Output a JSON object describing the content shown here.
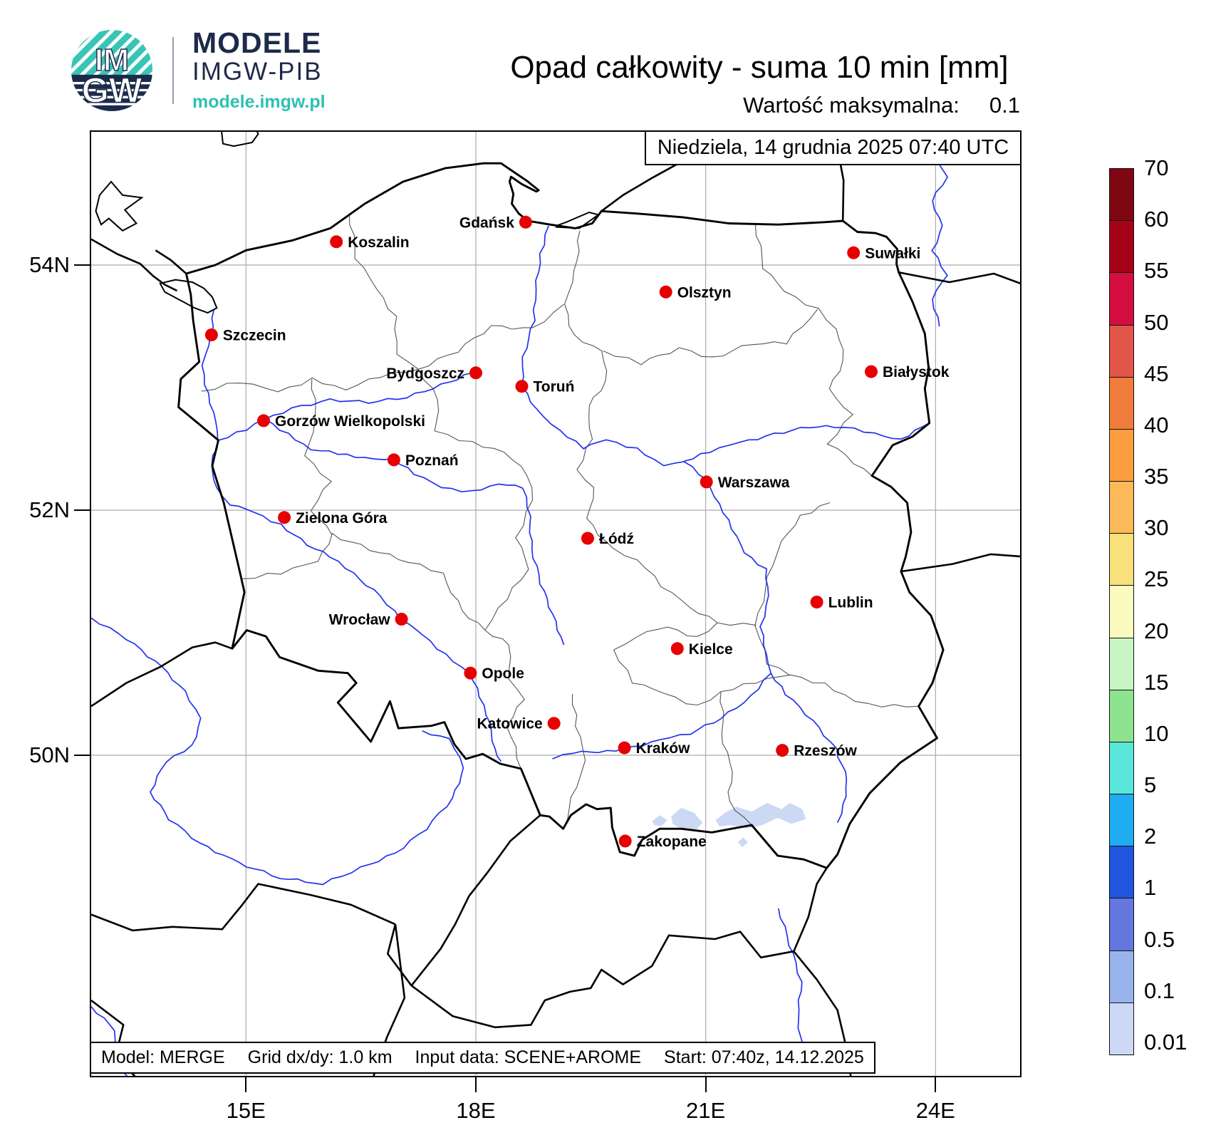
{
  "header": {
    "logo": {
      "circle_top": "IM",
      "circle_bottom": "GW",
      "brand": "MODELE",
      "sub": "IMGW-PIB",
      "url": "modele.imgw.pl",
      "teal": "#38c5b5",
      "navy": "#1c2b4a"
    },
    "title": "Opad całkowity - suma 10 min [mm]",
    "max_label": "Wartość maksymalna:",
    "max_value": "0.1"
  },
  "map": {
    "datetime_box": "Niedziela, 14 grudnia 2025 07:40 UTC",
    "footer": {
      "model": "Model: MERGE",
      "grid": "Grid dx/dy: 1.0 km",
      "input": "Input data: SCENE+AROME",
      "start": "Start: 07:40z, 14.12.2025"
    },
    "x_ticks": [
      {
        "label": "15E",
        "lon": 15
      },
      {
        "label": "18E",
        "lon": 18
      },
      {
        "label": "21E",
        "lon": 21
      },
      {
        "label": "24E",
        "lon": 24
      }
    ],
    "y_ticks": [
      {
        "label": "54N",
        "lat": 54
      },
      {
        "label": "52N",
        "lat": 52
      },
      {
        "label": "50N",
        "lat": 50
      }
    ],
    "city_dot_color": "#e60000",
    "precip_color": "#ccd9f4",
    "cities": [
      {
        "name": "Koszalin",
        "lon": 16.18,
        "lat": 54.19,
        "side": "right"
      },
      {
        "name": "Gdańsk",
        "lon": 18.65,
        "lat": 54.35,
        "side": "left"
      },
      {
        "name": "Suwałki",
        "lon": 22.93,
        "lat": 54.1,
        "side": "right"
      },
      {
        "name": "Olsztyn",
        "lon": 20.48,
        "lat": 53.78,
        "side": "right"
      },
      {
        "name": "Szczecin",
        "lon": 14.55,
        "lat": 53.43,
        "side": "right"
      },
      {
        "name": "Bydgoszcz",
        "lon": 18.0,
        "lat": 53.12,
        "side": "left"
      },
      {
        "name": "Toruń",
        "lon": 18.6,
        "lat": 53.01,
        "side": "right"
      },
      {
        "name": "Białystok",
        "lon": 23.16,
        "lat": 53.13,
        "side": "right"
      },
      {
        "name": "Gorzów Wielkopolski",
        "lon": 15.23,
        "lat": 52.73,
        "side": "right"
      },
      {
        "name": "Poznań",
        "lon": 16.93,
        "lat": 52.41,
        "side": "right"
      },
      {
        "name": "Warszawa",
        "lon": 21.01,
        "lat": 52.23,
        "side": "right"
      },
      {
        "name": "Zielona Góra",
        "lon": 15.5,
        "lat": 51.94,
        "side": "right"
      },
      {
        "name": "Łódź",
        "lon": 19.46,
        "lat": 51.77,
        "side": "right"
      },
      {
        "name": "Lublin",
        "lon": 22.45,
        "lat": 51.25,
        "side": "right"
      },
      {
        "name": "Wrocław",
        "lon": 17.03,
        "lat": 51.11,
        "side": "left"
      },
      {
        "name": "Kielce",
        "lon": 20.63,
        "lat": 50.87,
        "side": "right"
      },
      {
        "name": "Opole",
        "lon": 17.93,
        "lat": 50.67,
        "side": "right"
      },
      {
        "name": "Katowice",
        "lon": 19.02,
        "lat": 50.26,
        "side": "left"
      },
      {
        "name": "Kraków",
        "lon": 19.94,
        "lat": 50.06,
        "side": "right"
      },
      {
        "name": "Rzeszów",
        "lon": 22.0,
        "lat": 50.04,
        "side": "right"
      },
      {
        "name": "Zakopane",
        "lon": 19.95,
        "lat": 49.3,
        "side": "right"
      }
    ],
    "precip_patches": [
      [
        [
          20.55,
          49.5
        ],
        [
          20.68,
          49.57
        ],
        [
          20.85,
          49.53
        ],
        [
          20.96,
          49.45
        ],
        [
          20.86,
          49.38
        ],
        [
          20.68,
          49.4
        ],
        [
          20.57,
          49.44
        ]
      ],
      [
        [
          21.13,
          49.47
        ],
        [
          21.25,
          49.53
        ],
        [
          21.4,
          49.58
        ],
        [
          21.6,
          49.54
        ],
        [
          21.8,
          49.61
        ],
        [
          21.99,
          49.56
        ],
        [
          22.1,
          49.61
        ],
        [
          22.26,
          49.56
        ],
        [
          22.31,
          49.48
        ],
        [
          22.12,
          49.44
        ],
        [
          21.94,
          49.49
        ],
        [
          21.74,
          49.43
        ],
        [
          21.53,
          49.4
        ],
        [
          21.33,
          49.43
        ],
        [
          21.18,
          49.42
        ]
      ],
      [
        [
          20.3,
          49.46
        ],
        [
          20.4,
          49.51
        ],
        [
          20.5,
          49.47
        ],
        [
          20.42,
          49.42
        ],
        [
          20.33,
          49.43
        ]
      ],
      [
        [
          21.42,
          49.29
        ],
        [
          21.49,
          49.33
        ],
        [
          21.55,
          49.29
        ],
        [
          21.48,
          49.25
        ]
      ]
    ]
  },
  "colorbar": {
    "values": [
      "70",
      "60",
      "55",
      "50",
      "45",
      "40",
      "35",
      "30",
      "25",
      "20",
      "15",
      "10",
      "5",
      "2",
      "1",
      "0.5",
      "0.1",
      "0.01"
    ],
    "segment_colors": [
      "#7f0712",
      "#a50317",
      "#d40e41",
      "#e25549",
      "#f07d3b",
      "#fb9e42",
      "#fbb95a",
      "#f8e07a",
      "#fbfbc0",
      "#c9f5c4",
      "#8ee48e",
      "#59e6db",
      "#1fadf2",
      "#1f56dd",
      "#6377dc",
      "#99b4ec",
      "#ccd8f5"
    ]
  }
}
